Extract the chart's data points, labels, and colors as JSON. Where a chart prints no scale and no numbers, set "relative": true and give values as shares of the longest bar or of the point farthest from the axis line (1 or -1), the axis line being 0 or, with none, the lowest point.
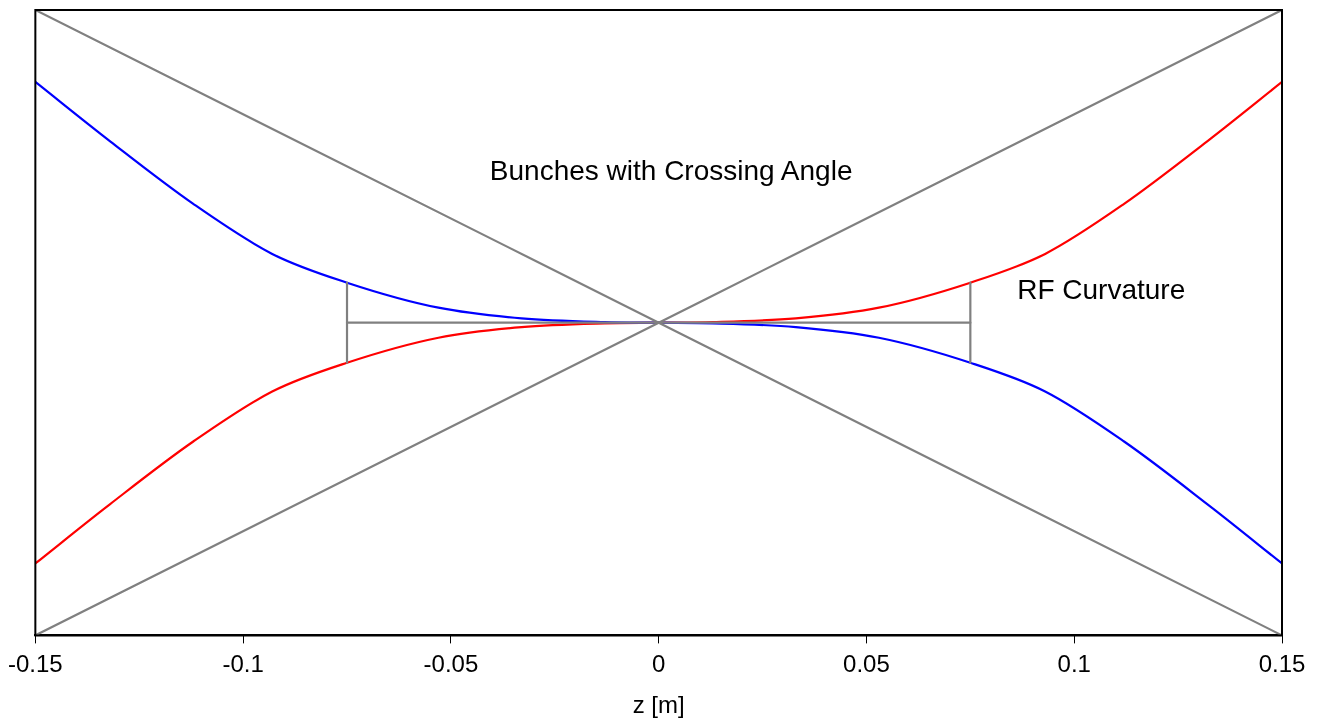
{
  "chart_data": {
    "type": "line",
    "relative": true,
    "xlabel": "z [m]",
    "xlim": [
      -0.15,
      0.15
    ],
    "xticks": [
      -0.15,
      -0.1,
      -0.05,
      0,
      0.05,
      0.1,
      0.15
    ],
    "tick_labels": "x",
    "grid": false,
    "legend": false,
    "marker": "none",
    "line_style": "solid",
    "series": [
      {
        "color": "#808080",
        "x": [
          -0.15,
          0.15
        ],
        "values": [
          1,
          0
        ]
      },
      {
        "color": "#808080",
        "x": [
          -0.15,
          0.15
        ],
        "values": [
          0,
          1
        ]
      },
      {
        "color": "#808080",
        "x": [
          -0.075,
          0.075
        ],
        "values": [
          0.5,
          0.5
        ]
      },
      {
        "color": "#808080",
        "x": [
          -0.075,
          -0.075
        ],
        "values": [
          0.436,
          0.564
        ]
      },
      {
        "color": "#808080",
        "x": [
          0.075,
          0.075
        ],
        "values": [
          0.436,
          0.564
        ]
      },
      {
        "color": "#0000ff",
        "x": [
          -0.15,
          -0.132,
          -0.112,
          -0.093,
          -0.075,
          -0.053,
          -0.033,
          -0.013,
          0,
          0.013,
          0.033,
          0.053,
          0.075,
          0.093,
          0.112,
          0.132,
          0.15
        ],
        "values": [
          0.885,
          0.79,
          0.69,
          0.61,
          0.564,
          0.524,
          0.507,
          0.501,
          0.5,
          0.499,
          0.493,
          0.476,
          0.436,
          0.39,
          0.31,
          0.21,
          0.115
        ]
      },
      {
        "color": "#ff0000",
        "x": [
          -0.15,
          -0.132,
          -0.112,
          -0.093,
          -0.075,
          -0.053,
          -0.033,
          -0.013,
          0,
          0.013,
          0.033,
          0.053,
          0.075,
          0.093,
          0.112,
          0.132,
          0.15
        ],
        "values": [
          0.115,
          0.21,
          0.31,
          0.39,
          0.436,
          0.476,
          0.493,
          0.499,
          0.5,
          0.501,
          0.507,
          0.524,
          0.564,
          0.61,
          0.69,
          0.79,
          0.885
        ]
      }
    ],
    "annotations": [
      "Bunches with Crossing Angle",
      "RF Curvature"
    ]
  }
}
